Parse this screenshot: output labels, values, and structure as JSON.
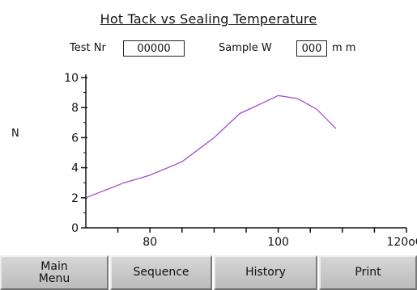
{
  "screen": {
    "title": "Hot Tack vs Sealing Temperature",
    "test_label": "Test Nr",
    "test_value": "00000",
    "sample_label": "Sample W",
    "sample_value": "000",
    "sample_unit": "m m"
  },
  "buttons": {
    "main_menu": "Main\nMenu",
    "sequence": "Sequence",
    "history": "History",
    "print": "Print"
  },
  "colors": {
    "curve": "#a050c8",
    "axis": "#111111"
  },
  "chart_data": {
    "type": "line",
    "title": "Hot Tack vs Sealing Temperature",
    "xlabel": "",
    "ylabel": "N",
    "xlim": [
      70,
      120
    ],
    "ylim": [
      0,
      10
    ],
    "x_tick_labels": [
      {
        "value": 80,
        "label": "80"
      },
      {
        "value": 100,
        "label": "100"
      },
      {
        "value": 120,
        "label": "120oC"
      }
    ],
    "y_ticks": [
      0,
      2,
      4,
      6,
      8,
      10
    ],
    "grid": false,
    "series": [
      {
        "x": [
          70,
          73,
          76,
          80,
          85,
          90,
          94,
          98,
          100,
          103,
          106,
          109
        ],
        "y": [
          2.0,
          2.5,
          3.0,
          3.5,
          4.4,
          6.0,
          7.6,
          8.4,
          8.8,
          8.6,
          7.9,
          6.6
        ]
      }
    ]
  }
}
